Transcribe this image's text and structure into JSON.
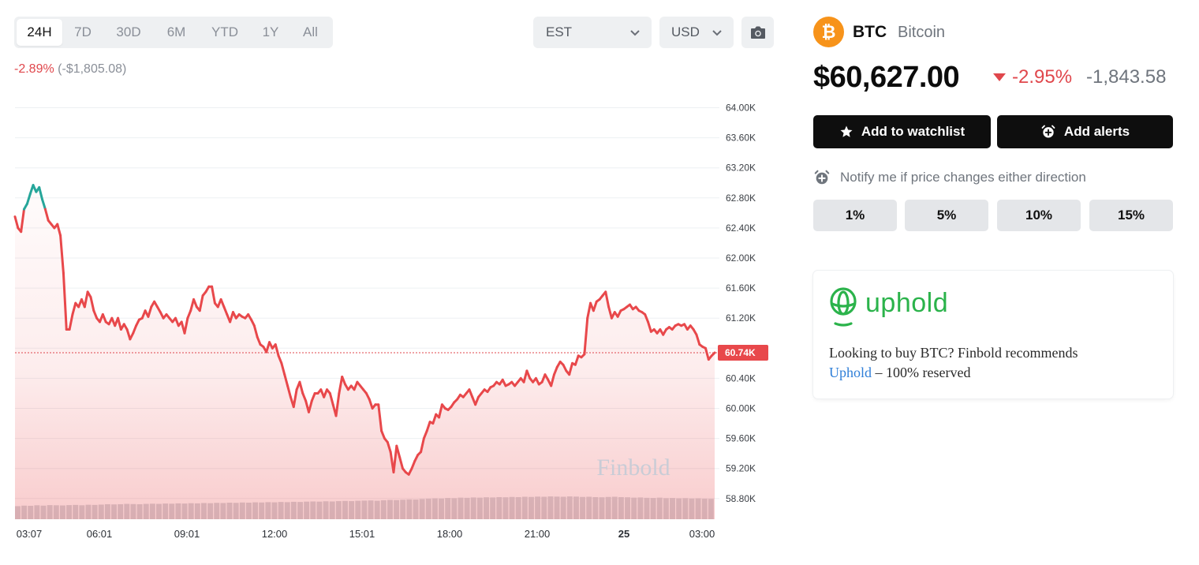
{
  "range_tabs": [
    {
      "label": "24H",
      "active": true
    },
    {
      "label": "7D",
      "active": false
    },
    {
      "label": "30D",
      "active": false
    },
    {
      "label": "6M",
      "active": false
    },
    {
      "label": "YTD",
      "active": false
    },
    {
      "label": "1Y",
      "active": false
    },
    {
      "label": "All",
      "active": false
    }
  ],
  "timezone_select": {
    "value": "EST"
  },
  "currency_select": {
    "value": "USD"
  },
  "period_change": {
    "percent": "-2.89%",
    "amount": "(-$1,805.08)"
  },
  "chart_data": {
    "type": "line",
    "title": "",
    "watermark": "Finbold",
    "x_tick_labels": [
      "03:07",
      "06:01",
      "09:01",
      "12:00",
      "15:01",
      "18:00",
      "21:00",
      "25",
      "03:00"
    ],
    "y_tick_labels": [
      "64.00K",
      "63.60K",
      "63.20K",
      "62.80K",
      "62.40K",
      "62.00K",
      "61.60K",
      "61.20K",
      "60.80K",
      "60.40K",
      "60.00K",
      "59.60K",
      "59.20K",
      "58.80K"
    ],
    "ylim": [
      58.6,
      64.1
    ],
    "y_unit": "K USD",
    "current_value": 60.74,
    "current_label": "60.74K",
    "grid": true,
    "line_color_below_open": "#e8484b",
    "line_color_above_open": "#26a69a",
    "series": [
      {
        "values": [
          62.55,
          62.4,
          62.35,
          62.65,
          62.72,
          62.85,
          62.97,
          62.88,
          62.94,
          62.78,
          62.65,
          62.5,
          62.45,
          62.4,
          62.45,
          62.3,
          61.8,
          61.05,
          61.05,
          61.25,
          61.4,
          61.35,
          61.45,
          61.35,
          61.55,
          61.48,
          61.3,
          61.2,
          61.15,
          61.25,
          61.15,
          61.12,
          61.2,
          61.1,
          61.2,
          61.05,
          61.12,
          61.05,
          60.92,
          61.0,
          61.1,
          61.18,
          61.2,
          61.3,
          61.22,
          61.35,
          61.42,
          61.35,
          61.28,
          61.2,
          61.25,
          61.2,
          61.15,
          61.2,
          61.1,
          61.15,
          61.0,
          61.2,
          61.3,
          61.45,
          61.35,
          61.3,
          61.5,
          61.55,
          61.62,
          61.62,
          61.4,
          61.35,
          61.45,
          61.35,
          61.25,
          61.15,
          61.28,
          61.2,
          61.25,
          61.22,
          61.2,
          61.25,
          61.18,
          61.1,
          60.95,
          60.85,
          60.82,
          60.75,
          60.88,
          60.8,
          60.85,
          60.7,
          60.6,
          60.45,
          60.3,
          60.15,
          60.02,
          60.25,
          60.35,
          60.2,
          60.1,
          59.95,
          60.1,
          60.2,
          60.2,
          60.25,
          60.15,
          60.25,
          60.2,
          60.05,
          59.9,
          60.2,
          60.42,
          60.32,
          60.25,
          60.3,
          60.25,
          60.35,
          60.3,
          60.25,
          60.2,
          60.12,
          60.0,
          60.05,
          60.05,
          59.7,
          59.6,
          59.55,
          59.42,
          59.15,
          59.5,
          59.35,
          59.2,
          59.15,
          59.12,
          59.2,
          59.3,
          59.38,
          59.42,
          59.6,
          59.7,
          59.82,
          59.8,
          59.92,
          59.88,
          60.05,
          60.0,
          59.98,
          60.02,
          60.08,
          60.12,
          60.18,
          60.15,
          60.2,
          60.25,
          60.15,
          60.05,
          60.15,
          60.2,
          60.25,
          60.22,
          60.28,
          60.3,
          60.35,
          60.32,
          60.38,
          60.3,
          60.32,
          60.35,
          60.3,
          60.35,
          60.4,
          60.35,
          60.5,
          60.4,
          60.35,
          60.4,
          60.32,
          60.35,
          60.45,
          60.38,
          60.3,
          60.45,
          60.55,
          60.62,
          60.58,
          60.5,
          60.45,
          60.6,
          60.58,
          60.7,
          60.68,
          60.72,
          61.2,
          61.4,
          61.3,
          61.42,
          61.45,
          61.5,
          61.55,
          61.35,
          61.2,
          61.28,
          61.22,
          61.3,
          61.32,
          61.35,
          61.38,
          61.32,
          61.35,
          61.3,
          61.28,
          61.25,
          61.15,
          61.02,
          61.05,
          61.0,
          61.05,
          60.98,
          61.05,
          61.08,
          61.05,
          61.1,
          61.12,
          61.1,
          61.12,
          61.05,
          61.1,
          61.05,
          60.98,
          60.85,
          60.82,
          60.8,
          60.65,
          60.7,
          60.74
        ]
      }
    ],
    "volume_bars": [
      0.39,
      0.42,
      0.41,
      0.44,
      0.42,
      0.45,
      0.44,
      0.43,
      0.45,
      0.46,
      0.44,
      0.47,
      0.46,
      0.48,
      0.5,
      0.49,
      0.5,
      0.52,
      0.51,
      0.5,
      0.52,
      0.53,
      0.52,
      0.54,
      0.53,
      0.55,
      0.54,
      0.56,
      0.55,
      0.57,
      0.56,
      0.58,
      0.57,
      0.59,
      0.58,
      0.6,
      0.59,
      0.61,
      0.6,
      0.62,
      0.61,
      0.63,
      0.62,
      0.64,
      0.63,
      0.65,
      0.66,
      0.65,
      0.67,
      0.66,
      0.68,
      0.69,
      0.68,
      0.7,
      0.71,
      0.72,
      0.7,
      0.73,
      0.75,
      0.74,
      0.76,
      0.78,
      0.77,
      0.8,
      0.82,
      0.84,
      0.83,
      0.86,
      0.85,
      0.88,
      0.87,
      0.89,
      0.88,
      0.9,
      0.89,
      0.91,
      0.9,
      0.92,
      0.91,
      0.93,
      0.92,
      0.94,
      0.93,
      0.95,
      0.94,
      0.93,
      0.95,
      0.94,
      0.92,
      0.93,
      0.91,
      0.9,
      0.92,
      0.93,
      0.91,
      0.9,
      0.88,
      0.89,
      0.87,
      0.86,
      0.88,
      0.85,
      0.86,
      0.84,
      0.85,
      0.83,
      0.84,
      0.82,
      0.81
    ]
  },
  "coin": {
    "logo_glyph": "₿",
    "logo_color": "#f7931a",
    "symbol": "BTC",
    "name": "Bitcoin",
    "price": "$60,627.00",
    "change_percent": "-2.95%",
    "change_abs": "-1,843.58"
  },
  "actions": {
    "watchlist_label": "Add to watchlist",
    "alerts_label": "Add alerts"
  },
  "notify": {
    "text": "Notify me if price changes either direction",
    "options": [
      "1%",
      "5%",
      "10%",
      "15%"
    ]
  },
  "ad": {
    "brand": "uphold",
    "brand_color": "#2bb34b",
    "text_before": "Looking to buy BTC? Finbold recommends",
    "link_text": "Uphold",
    "text_after": " – 100% reserved"
  },
  "colors": {
    "negative": "#e0474c",
    "positive": "#26a69a",
    "button_dark": "#0e0e0e"
  }
}
